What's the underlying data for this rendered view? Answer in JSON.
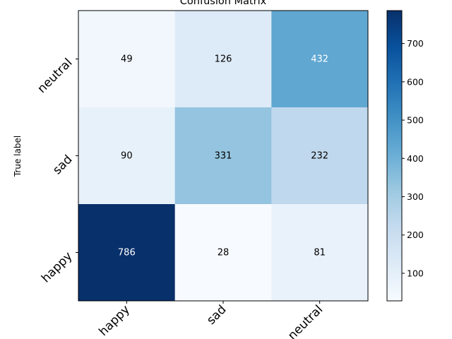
{
  "chart_data": {
    "type": "heatmap",
    "title": "Confusion Matrix",
    "ylabel": "True label",
    "xlabel": "",
    "x_categories": [
      "happy",
      "sad",
      "neutral"
    ],
    "y_categories_top_to_bottom": [
      "neutral",
      "sad",
      "happy"
    ],
    "matrix_rows_top_to_bottom": [
      [
        49,
        126,
        432
      ],
      [
        90,
        331,
        232
      ],
      [
        786,
        28,
        81
      ]
    ],
    "colormap": "Blues",
    "color_range": [
      28,
      786
    ],
    "colorbar_ticks": [
      100,
      200,
      300,
      400,
      500,
      600,
      700
    ],
    "text_color_dark": "#000000",
    "text_color_light": "#ffffff"
  }
}
